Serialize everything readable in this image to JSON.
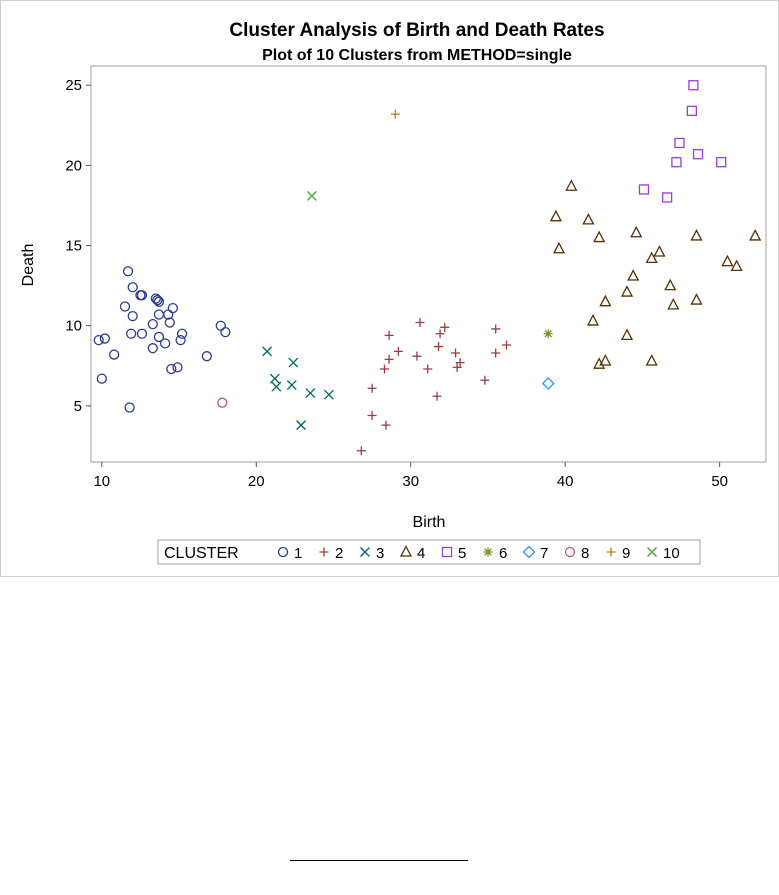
{
  "chart_data": {
    "type": "scatter",
    "title": "Cluster Analysis of Birth and Death Rates",
    "subtitle": "Plot of 10 Clusters from METHOD=single",
    "xlabel": "Birth",
    "ylabel": "Death",
    "xlim": [
      9.3,
      53
    ],
    "ylim": [
      1.5,
      26.2
    ],
    "xticks": [
      10,
      20,
      30,
      40,
      50
    ],
    "yticks": [
      5,
      10,
      15,
      20,
      25
    ],
    "grid": false,
    "legend": {
      "title": "CLUSTER",
      "position": "bottom"
    },
    "series": [
      {
        "name": "1",
        "marker": "circle",
        "color": "#2A3C8E",
        "points": [
          [
            9.8,
            9.1
          ],
          [
            10.2,
            9.2
          ],
          [
            10.0,
            6.7
          ],
          [
            10.8,
            8.2
          ],
          [
            11.5,
            11.2
          ],
          [
            11.7,
            13.4
          ],
          [
            12.0,
            12.4
          ],
          [
            12.0,
            10.6
          ],
          [
            11.9,
            9.5
          ],
          [
            11.8,
            4.9
          ],
          [
            12.5,
            11.9
          ],
          [
            12.6,
            11.9
          ],
          [
            12.6,
            9.5
          ],
          [
            13.3,
            10.1
          ],
          [
            13.3,
            8.6
          ],
          [
            13.5,
            11.7
          ],
          [
            13.6,
            11.6
          ],
          [
            13.7,
            11.5
          ],
          [
            13.7,
            10.7
          ],
          [
            13.7,
            9.3
          ],
          [
            14.1,
            8.9
          ],
          [
            14.3,
            10.7
          ],
          [
            14.4,
            10.2
          ],
          [
            14.6,
            11.1
          ],
          [
            14.5,
            7.3
          ],
          [
            14.9,
            7.4
          ],
          [
            15.1,
            9.1
          ],
          [
            15.2,
            9.5
          ],
          [
            16.8,
            8.1
          ],
          [
            17.7,
            10.0
          ],
          [
            18.0,
            9.6
          ]
        ]
      },
      {
        "name": "2",
        "marker": "plus",
        "color": "#9C3D3D",
        "points": [
          [
            26.8,
            2.2
          ],
          [
            27.5,
            6.1
          ],
          [
            27.5,
            4.4
          ],
          [
            28.3,
            7.3
          ],
          [
            28.4,
            3.8
          ],
          [
            28.6,
            9.4
          ],
          [
            28.6,
            7.9
          ],
          [
            29.2,
            8.4
          ],
          [
            30.4,
            8.1
          ],
          [
            30.6,
            10.2
          ],
          [
            31.1,
            7.3
          ],
          [
            31.7,
            5.6
          ],
          [
            31.8,
            8.7
          ],
          [
            31.9,
            9.5
          ],
          [
            32.2,
            9.9
          ],
          [
            32.9,
            8.3
          ],
          [
            33.0,
            7.4
          ],
          [
            33.2,
            7.7
          ],
          [
            34.8,
            6.6
          ],
          [
            35.5,
            9.8
          ],
          [
            35.5,
            8.3
          ],
          [
            36.2,
            8.8
          ]
        ]
      },
      {
        "name": "3",
        "marker": "x",
        "color": "#01665E",
        "points": [
          [
            20.7,
            8.4
          ],
          [
            21.2,
            6.7
          ],
          [
            21.3,
            6.2
          ],
          [
            22.3,
            6.3
          ],
          [
            22.4,
            7.7
          ],
          [
            22.9,
            3.8
          ],
          [
            23.5,
            5.8
          ],
          [
            24.7,
            5.7
          ]
        ]
      },
      {
        "name": "4",
        "marker": "triangle",
        "color": "#543005",
        "points": [
          [
            39.4,
            16.8
          ],
          [
            39.6,
            14.8
          ],
          [
            40.4,
            18.7
          ],
          [
            41.5,
            16.6
          ],
          [
            41.8,
            10.3
          ],
          [
            42.2,
            15.5
          ],
          [
            42.2,
            7.6
          ],
          [
            42.6,
            11.5
          ],
          [
            42.6,
            7.8
          ],
          [
            44.0,
            12.1
          ],
          [
            44.0,
            9.4
          ],
          [
            44.4,
            13.1
          ],
          [
            44.6,
            15.8
          ],
          [
            45.6,
            14.2
          ],
          [
            45.6,
            7.8
          ],
          [
            46.1,
            14.6
          ],
          [
            46.8,
            12.5
          ],
          [
            47.0,
            11.3
          ],
          [
            48.5,
            15.6
          ],
          [
            48.5,
            11.6
          ],
          [
            50.5,
            14.0
          ],
          [
            51.1,
            13.7
          ],
          [
            52.3,
            15.6
          ]
        ]
      },
      {
        "name": "5",
        "marker": "square",
        "color": "#9D3CDB",
        "points": [
          [
            45.1,
            18.5
          ],
          [
            46.6,
            18.0
          ],
          [
            47.2,
            20.2
          ],
          [
            47.4,
            21.4
          ],
          [
            48.2,
            23.4
          ],
          [
            48.3,
            25.0
          ],
          [
            48.6,
            20.7
          ],
          [
            50.1,
            20.2
          ]
        ]
      },
      {
        "name": "6",
        "marker": "star",
        "color": "#7F8E1F",
        "points": [
          [
            38.9,
            9.5
          ]
        ]
      },
      {
        "name": "7",
        "marker": "diamond",
        "color": "#2597FA",
        "points": [
          [
            38.9,
            6.4
          ]
        ]
      },
      {
        "name": "8",
        "marker": "circle",
        "color": "#B65F74",
        "points": [
          [
            17.8,
            5.2
          ]
        ]
      },
      {
        "name": "9",
        "marker": "plus",
        "color": "#D17800",
        "points": [
          [
            29.0,
            23.2
          ]
        ]
      },
      {
        "name": "10",
        "marker": "x",
        "color": "#47A82A",
        "points": [
          [
            23.6,
            18.1
          ]
        ]
      }
    ]
  }
}
